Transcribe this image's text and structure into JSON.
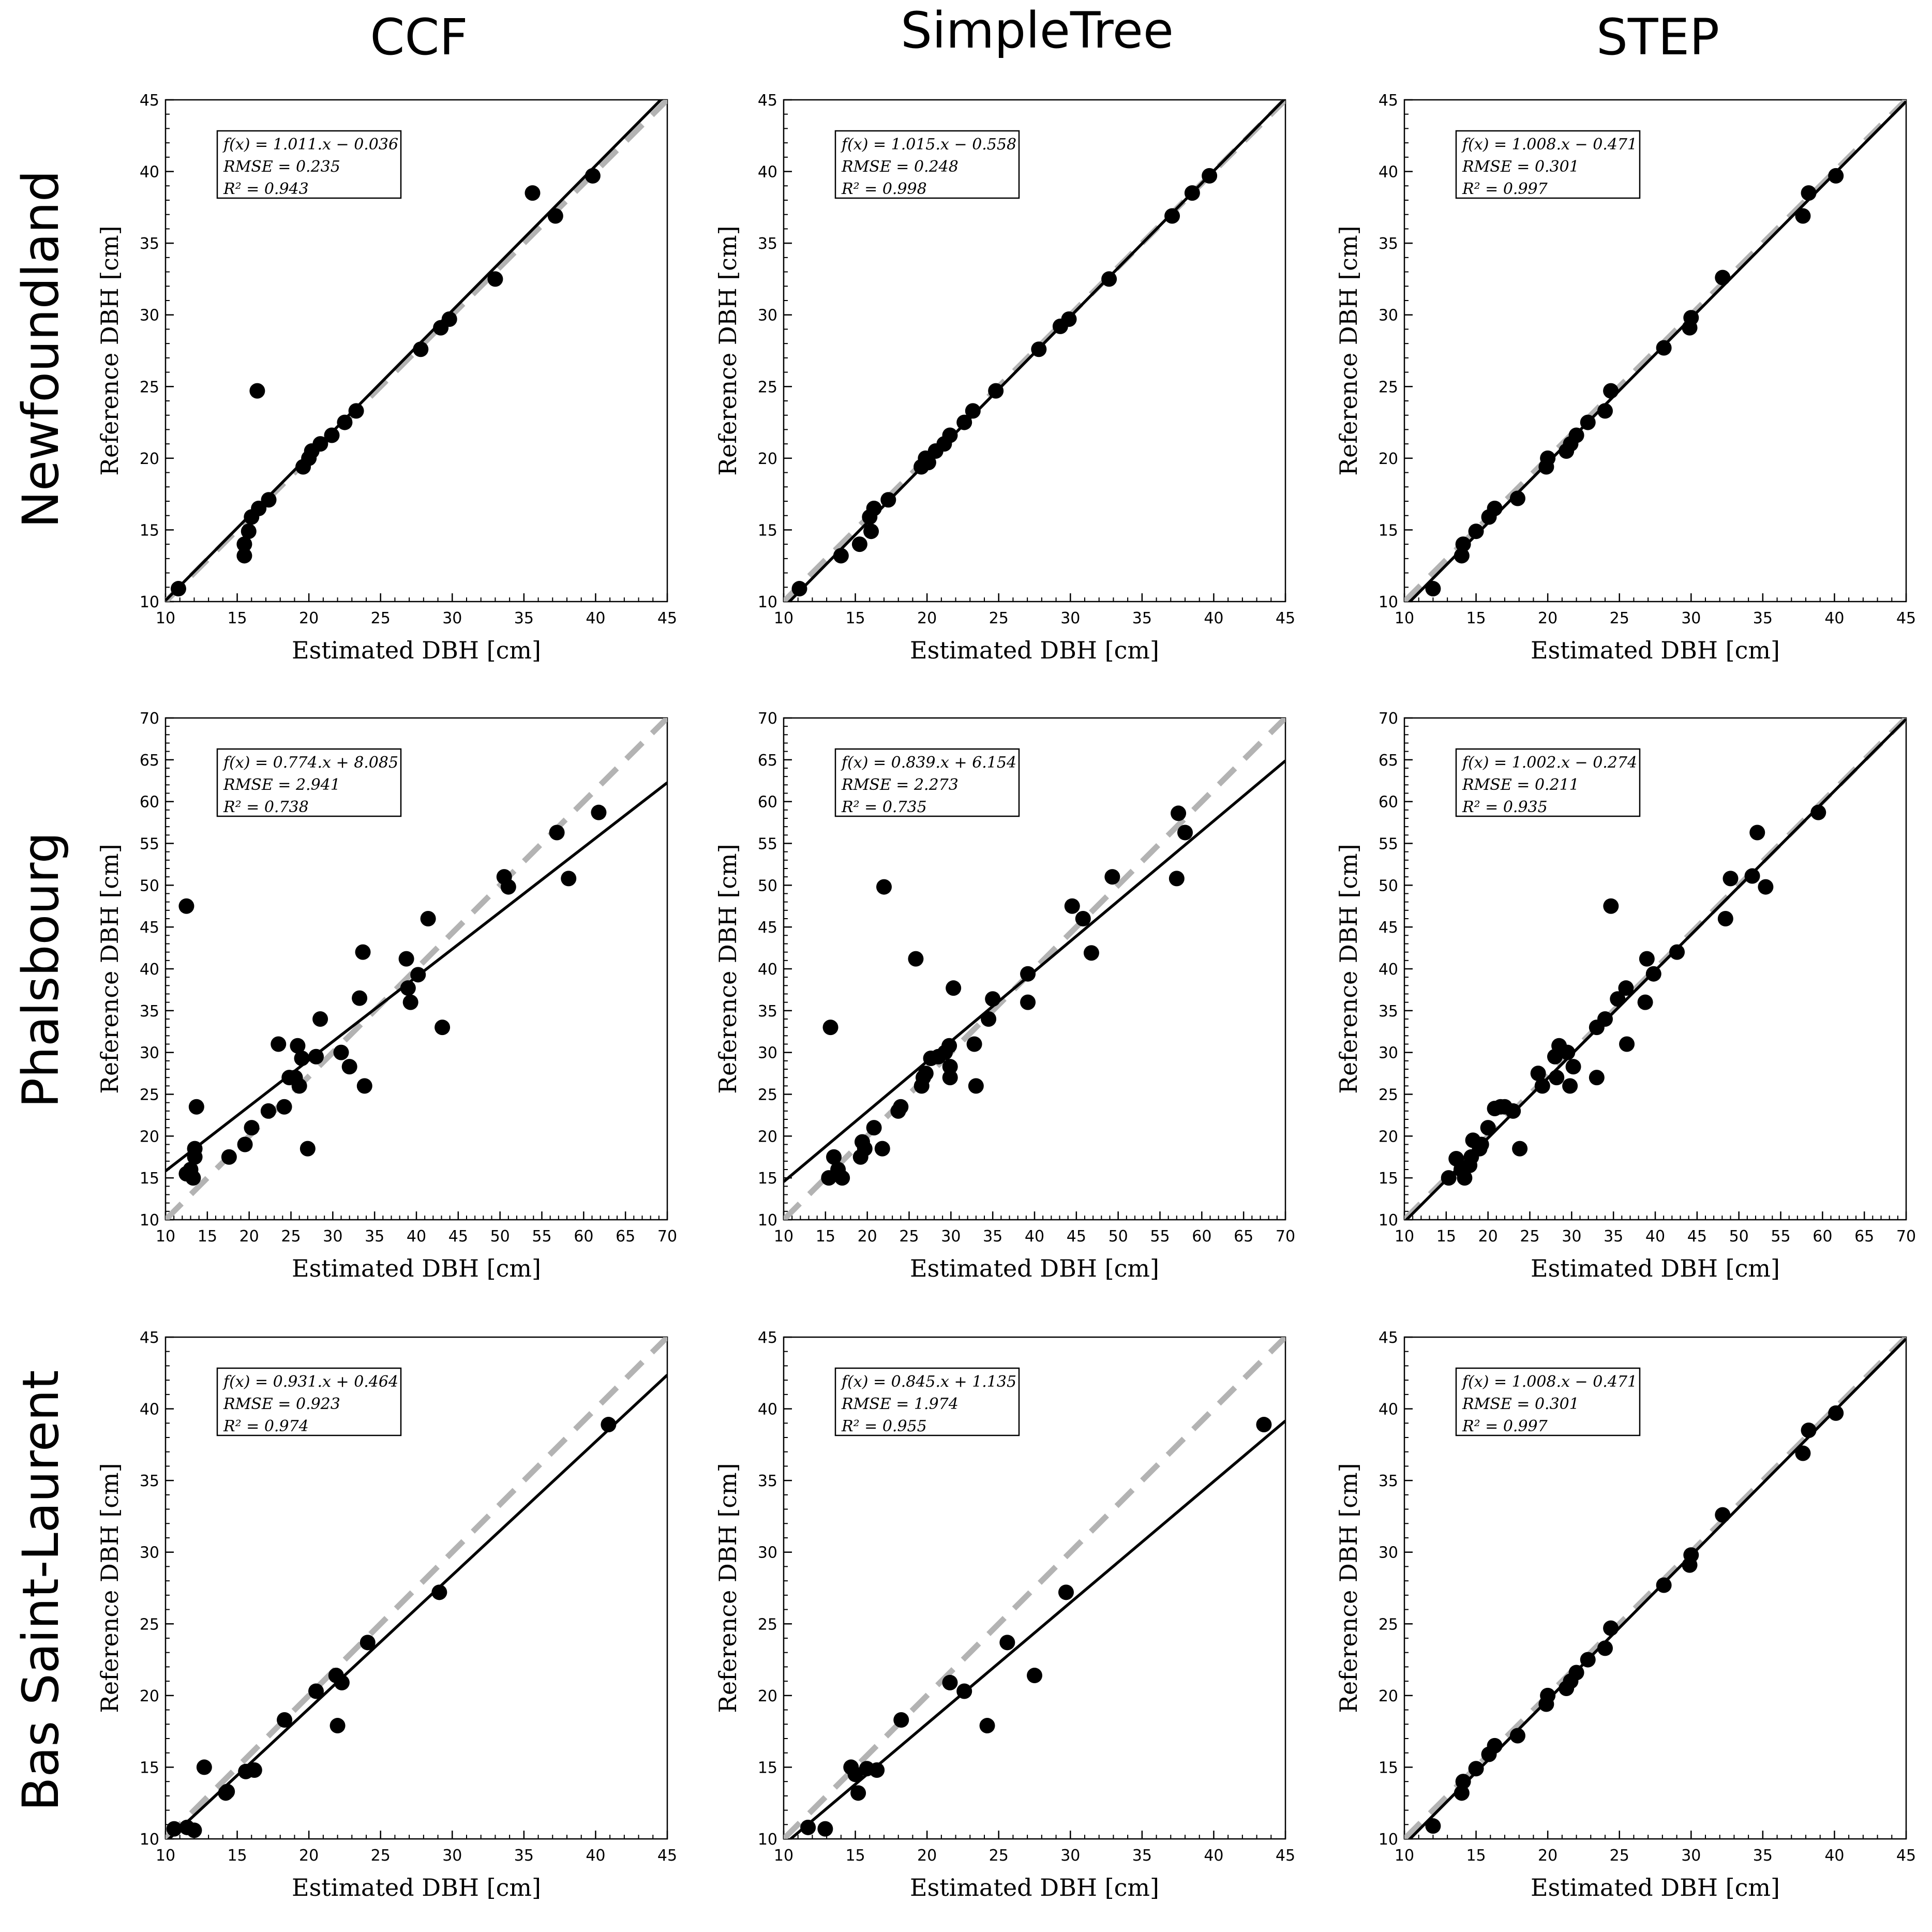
{
  "columns": [
    "CCF",
    "SimpleTree",
    "STEP"
  ],
  "rows": [
    "Newfoundland",
    "Phalsbourg",
    "Bas Saint-Laurent"
  ],
  "styles": {
    "point_color": "#000000",
    "fit_line_color": "#000000",
    "identity_line_color": "#b3b3b3"
  },
  "chart_data": [
    {
      "type": "scatter",
      "row": "Newfoundland",
      "column": "CCF",
      "xlabel": "Estimated DBH [cm]",
      "ylabel": "Reference DBH [cm]",
      "xlim": [
        10,
        45
      ],
      "ylim": [
        10,
        45
      ],
      "xticks": [
        10,
        15,
        20,
        25,
        30,
        35,
        40,
        45
      ],
      "yticks": [
        10,
        15,
        20,
        25,
        30,
        35,
        40,
        45
      ],
      "fit": {
        "slope": 1.011,
        "intercept": -0.036
      },
      "annotation": [
        "f(x) = 1.011.x − 0.036",
        "RMSE = 0.235",
        "R² = 0.943"
      ],
      "points": [
        [
          10.9,
          10.9
        ],
        [
          15.5,
          13.2
        ],
        [
          15.5,
          14.0
        ],
        [
          15.8,
          14.9
        ],
        [
          16.0,
          15.9
        ],
        [
          16.5,
          16.5
        ],
        [
          17.2,
          17.1
        ],
        [
          16.4,
          24.7
        ],
        [
          19.6,
          19.4
        ],
        [
          20.0,
          20.0
        ],
        [
          20.2,
          20.5
        ],
        [
          20.8,
          21.0
        ],
        [
          21.6,
          21.6
        ],
        [
          22.5,
          22.5
        ],
        [
          23.3,
          23.3
        ],
        [
          27.8,
          27.6
        ],
        [
          29.2,
          29.1
        ],
        [
          29.8,
          29.7
        ],
        [
          33.0,
          32.5
        ],
        [
          35.6,
          38.5
        ],
        [
          37.2,
          36.9
        ],
        [
          39.8,
          39.7
        ]
      ]
    },
    {
      "type": "scatter",
      "row": "Newfoundland",
      "column": "SimpleTree",
      "xlabel": "Estimated DBH [cm]",
      "ylabel": "Reference DBH [cm]",
      "xlim": [
        10,
        45
      ],
      "ylim": [
        10,
        45
      ],
      "xticks": [
        10,
        15,
        20,
        25,
        30,
        35,
        40,
        45
      ],
      "yticks": [
        10,
        15,
        20,
        25,
        30,
        35,
        40,
        45
      ],
      "fit": {
        "slope": 1.015,
        "intercept": -0.558
      },
      "annotation": [
        "f(x) = 1.015.x − 0.558",
        "RMSE = 0.248",
        "R² = 0.998"
      ],
      "points": [
        [
          11.1,
          10.9
        ],
        [
          14.0,
          13.2
        ],
        [
          15.3,
          14.0
        ],
        [
          16.1,
          14.9
        ],
        [
          16.0,
          15.9
        ],
        [
          16.3,
          16.5
        ],
        [
          17.3,
          17.1
        ],
        [
          19.6,
          19.4
        ],
        [
          19.9,
          20.0
        ],
        [
          20.1,
          19.7
        ],
        [
          20.6,
          20.5
        ],
        [
          21.2,
          21.0
        ],
        [
          21.6,
          21.6
        ],
        [
          22.6,
          22.5
        ],
        [
          23.2,
          23.3
        ],
        [
          24.8,
          24.7
        ],
        [
          27.8,
          27.6
        ],
        [
          29.3,
          29.2
        ],
        [
          29.9,
          29.7
        ],
        [
          32.7,
          32.5
        ],
        [
          37.1,
          36.9
        ],
        [
          38.5,
          38.5
        ],
        [
          39.7,
          39.7
        ]
      ]
    },
    {
      "type": "scatter",
      "row": "Newfoundland",
      "column": "STEP",
      "xlabel": "Estimated DBH [cm]",
      "ylabel": "Reference DBH [cm]",
      "xlim": [
        10,
        45
      ],
      "ylim": [
        10,
        45
      ],
      "xticks": [
        10,
        15,
        20,
        25,
        30,
        35,
        40,
        45
      ],
      "yticks": [
        10,
        15,
        20,
        25,
        30,
        35,
        40,
        45
      ],
      "fit": {
        "slope": 1.008,
        "intercept": -0.471
      },
      "annotation": [
        "f(x) = 1.008.x − 0.471",
        "RMSE = 0.301",
        "R² = 0.997"
      ],
      "points": [
        [
          12.0,
          10.9
        ],
        [
          14.0,
          13.2
        ],
        [
          14.1,
          14.0
        ],
        [
          15.0,
          14.9
        ],
        [
          15.9,
          15.9
        ],
        [
          16.3,
          16.5
        ],
        [
          17.9,
          17.2
        ],
        [
          19.9,
          19.4
        ],
        [
          20.0,
          20.0
        ],
        [
          21.3,
          20.5
        ],
        [
          21.6,
          21.0
        ],
        [
          22.0,
          21.6
        ],
        [
          22.8,
          22.5
        ],
        [
          24.0,
          23.3
        ],
        [
          24.4,
          24.7
        ],
        [
          28.1,
          27.7
        ],
        [
          29.9,
          29.1
        ],
        [
          30.0,
          29.8
        ],
        [
          32.2,
          32.6
        ],
        [
          37.8,
          36.9
        ],
        [
          38.2,
          38.5
        ],
        [
          40.1,
          39.7
        ]
      ]
    },
    {
      "type": "scatter",
      "row": "Phalsbourg",
      "column": "CCF",
      "xlabel": "Estimated DBH [cm]",
      "ylabel": "Reference DBH [cm]",
      "xlim": [
        10,
        70
      ],
      "ylim": [
        10,
        70
      ],
      "xticks": [
        10,
        15,
        20,
        25,
        30,
        35,
        40,
        45,
        50,
        55,
        60,
        65,
        70
      ],
      "yticks": [
        10,
        15,
        20,
        25,
        30,
        35,
        40,
        45,
        50,
        55,
        60,
        65,
        70
      ],
      "fit": {
        "slope": 0.774,
        "intercept": 8.085
      },
      "annotation": [
        "f(x) = 0.774.x + 8.085",
        "RMSE = 2.941",
        "R² = 0.738"
      ],
      "points": [
        [
          12.5,
          47.5
        ],
        [
          12.5,
          15.5
        ],
        [
          13.0,
          16.0
        ],
        [
          13.3,
          15.0
        ],
        [
          13.5,
          17.5
        ],
        [
          13.5,
          18.5
        ],
        [
          13.7,
          23.5
        ],
        [
          17.6,
          17.5
        ],
        [
          19.5,
          19.0
        ],
        [
          20.3,
          21.0
        ],
        [
          22.3,
          23.0
        ],
        [
          23.5,
          31.0
        ],
        [
          24.2,
          23.5
        ],
        [
          24.8,
          27.0
        ],
        [
          25.5,
          27.0
        ],
        [
          25.8,
          30.8
        ],
        [
          26.0,
          26.0
        ],
        [
          26.3,
          29.3
        ],
        [
          27.0,
          18.5
        ],
        [
          28.0,
          29.5
        ],
        [
          28.5,
          34.0
        ],
        [
          31.0,
          30.0
        ],
        [
          32.0,
          28.3
        ],
        [
          33.2,
          36.5
        ],
        [
          33.6,
          42.0
        ],
        [
          33.8,
          26.0
        ],
        [
          38.8,
          41.2
        ],
        [
          39.0,
          37.7
        ],
        [
          39.3,
          36.0
        ],
        [
          40.2,
          39.3
        ],
        [
          41.4,
          46.0
        ],
        [
          43.1,
          33.0
        ],
        [
          50.5,
          51.0
        ],
        [
          51.0,
          49.8
        ],
        [
          56.8,
          56.3
        ],
        [
          58.2,
          50.8
        ],
        [
          61.8,
          58.7
        ]
      ]
    },
    {
      "type": "scatter",
      "row": "Phalsbourg",
      "column": "SimpleTree",
      "xlabel": "Estimated DBH [cm]",
      "ylabel": "Reference DBH [cm]",
      "xlim": [
        10,
        70
      ],
      "ylim": [
        10,
        70
      ],
      "xticks": [
        10,
        15,
        20,
        25,
        30,
        35,
        40,
        45,
        50,
        55,
        60,
        65,
        70
      ],
      "yticks": [
        10,
        15,
        20,
        25,
        30,
        35,
        40,
        45,
        50,
        55,
        60,
        65,
        70
      ],
      "fit": {
        "slope": 0.839,
        "intercept": 6.154
      },
      "annotation": [
        "f(x) = 0.839.x + 6.154",
        "RMSE = 2.273",
        "R² = 0.735"
      ],
      "points": [
        [
          15.6,
          33.0
        ],
        [
          15.4,
          15.0
        ],
        [
          16.0,
          17.5
        ],
        [
          16.5,
          16.0
        ],
        [
          17.0,
          15.0
        ],
        [
          19.2,
          17.5
        ],
        [
          19.4,
          19.3
        ],
        [
          19.7,
          18.5
        ],
        [
          20.8,
          21.0
        ],
        [
          21.8,
          18.5
        ],
        [
          22.0,
          49.8
        ],
        [
          23.7,
          23.0
        ],
        [
          24.0,
          23.5
        ],
        [
          25.8,
          41.2
        ],
        [
          26.5,
          26.0
        ],
        [
          26.7,
          27.0
        ],
        [
          27.0,
          27.5
        ],
        [
          27.6,
          29.3
        ],
        [
          28.5,
          29.5
        ],
        [
          29.3,
          30.0
        ],
        [
          29.8,
          30.8
        ],
        [
          29.9,
          27.0
        ],
        [
          29.9,
          28.3
        ],
        [
          30.3,
          37.7
        ],
        [
          32.8,
          31.0
        ],
        [
          33.0,
          26.0
        ],
        [
          34.5,
          34.0
        ],
        [
          35.0,
          36.4
        ],
        [
          39.2,
          39.4
        ],
        [
          39.2,
          36.0
        ],
        [
          44.5,
          47.5
        ],
        [
          45.8,
          46.0
        ],
        [
          46.8,
          41.9
        ],
        [
          49.3,
          51.0
        ],
        [
          57.0,
          50.8
        ],
        [
          57.2,
          58.6
        ],
        [
          58.0,
          56.3
        ]
      ]
    },
    {
      "type": "scatter",
      "row": "Phalsbourg",
      "column": "STEP",
      "xlabel": "Estimated DBH [cm]",
      "ylabel": "Reference DBH [cm]",
      "xlim": [
        10,
        70
      ],
      "ylim": [
        10,
        70
      ],
      "xticks": [
        10,
        15,
        20,
        25,
        30,
        35,
        40,
        45,
        50,
        55,
        60,
        65,
        70
      ],
      "yticks": [
        10,
        15,
        20,
        25,
        30,
        35,
        40,
        45,
        50,
        55,
        60,
        65,
        70
      ],
      "fit": {
        "slope": 1.002,
        "intercept": -0.274
      },
      "annotation": [
        "f(x) = 1.002.x − 0.274",
        "RMSE = 0.211",
        "R² = 0.935"
      ],
      "points": [
        [
          15.3,
          15.0
        ],
        [
          16.2,
          17.3
        ],
        [
          16.8,
          16.0
        ],
        [
          17.2,
          15.0
        ],
        [
          17.8,
          16.5
        ],
        [
          18.0,
          17.5
        ],
        [
          18.2,
          19.5
        ],
        [
          19.0,
          18.5
        ],
        [
          19.2,
          19.0
        ],
        [
          20.0,
          21.0
        ],
        [
          20.8,
          23.3
        ],
        [
          21.5,
          23.5
        ],
        [
          22.0,
          23.5
        ],
        [
          23.0,
          23.0
        ],
        [
          23.8,
          18.5
        ],
        [
          26.0,
          27.5
        ],
        [
          26.5,
          26.0
        ],
        [
          28.0,
          29.5
        ],
        [
          28.2,
          27.0
        ],
        [
          28.5,
          30.8
        ],
        [
          29.5,
          30.0
        ],
        [
          29.8,
          26.0
        ],
        [
          30.2,
          28.3
        ],
        [
          33.0,
          33.0
        ],
        [
          33.0,
          27.0
        ],
        [
          34.0,
          34.0
        ],
        [
          34.7,
          47.5
        ],
        [
          35.5,
          36.4
        ],
        [
          36.5,
          37.7
        ],
        [
          36.6,
          31.0
        ],
        [
          38.8,
          36.0
        ],
        [
          39.0,
          41.2
        ],
        [
          39.8,
          39.4
        ],
        [
          42.6,
          42.0
        ],
        [
          48.4,
          46.0
        ],
        [
          49.0,
          50.8
        ],
        [
          51.6,
          51.1
        ],
        [
          52.2,
          56.3
        ],
        [
          53.2,
          49.8
        ],
        [
          59.5,
          58.7
        ]
      ]
    },
    {
      "type": "scatter",
      "row": "Bas Saint-Laurent",
      "column": "CCF",
      "xlabel": "Estimated DBH [cm]",
      "ylabel": "Reference DBH [cm]",
      "xlim": [
        10,
        45
      ],
      "ylim": [
        10,
        45
      ],
      "xticks": [
        10,
        15,
        20,
        25,
        30,
        35,
        40,
        45
      ],
      "yticks": [
        10,
        15,
        20,
        25,
        30,
        35,
        40,
        45
      ],
      "fit": {
        "slope": 0.931,
        "intercept": 0.464
      },
      "annotation": [
        "f(x) = 0.931.x + 0.464",
        "RMSE = 0.923",
        "R² = 0.974"
      ],
      "points": [
        [
          10.6,
          10.7
        ],
        [
          11.5,
          10.8
        ],
        [
          12.0,
          10.6
        ],
        [
          12.7,
          15.0
        ],
        [
          14.2,
          13.2
        ],
        [
          14.3,
          13.3
        ],
        [
          15.6,
          14.7
        ],
        [
          16.2,
          14.8
        ],
        [
          18.3,
          18.3
        ],
        [
          20.5,
          20.3
        ],
        [
          21.9,
          21.4
        ],
        [
          22.0,
          17.9
        ],
        [
          22.3,
          20.9
        ],
        [
          24.1,
          23.7
        ],
        [
          29.1,
          27.2
        ],
        [
          40.9,
          38.9
        ]
      ]
    },
    {
      "type": "scatter",
      "row": "Bas Saint-Laurent",
      "column": "SimpleTree",
      "xlabel": "Estimated DBH [cm]",
      "ylabel": "Reference DBH [cm]",
      "xlim": [
        10,
        45
      ],
      "ylim": [
        10,
        45
      ],
      "xticks": [
        10,
        15,
        20,
        25,
        30,
        35,
        40,
        45
      ],
      "yticks": [
        10,
        15,
        20,
        25,
        30,
        35,
        40,
        45
      ],
      "fit": {
        "slope": 0.845,
        "intercept": 1.135
      },
      "annotation": [
        "f(x) = 0.845.x + 1.135",
        "RMSE = 1.974",
        "R² = 0.955"
      ],
      "points": [
        [
          11.7,
          10.8
        ],
        [
          12.9,
          10.7
        ],
        [
          14.7,
          15.0
        ],
        [
          15.0,
          14.5
        ],
        [
          15.2,
          13.2
        ],
        [
          15.8,
          14.9
        ],
        [
          16.5,
          14.8
        ],
        [
          18.2,
          18.3
        ],
        [
          21.6,
          20.9
        ],
        [
          22.6,
          20.3
        ],
        [
          24.2,
          17.9
        ],
        [
          25.6,
          23.7
        ],
        [
          27.5,
          21.4
        ],
        [
          29.7,
          27.2
        ],
        [
          43.5,
          38.9
        ]
      ]
    },
    {
      "type": "scatter",
      "row": "Bas Saint-Laurent",
      "column": "STEP",
      "xlabel": "Estimated DBH [cm]",
      "ylabel": "Reference DBH [cm]",
      "xlim": [
        10,
        45
      ],
      "ylim": [
        10,
        45
      ],
      "xticks": [
        10,
        15,
        20,
        25,
        30,
        35,
        40,
        45
      ],
      "yticks": [
        10,
        15,
        20,
        25,
        30,
        35,
        40,
        45
      ],
      "fit": {
        "slope": 1.008,
        "intercept": -0.471
      },
      "annotation": [
        "f(x) = 1.008.x − 0.471",
        "RMSE = 0.301",
        "R² = 0.997"
      ],
      "points": [
        [
          12.0,
          10.9
        ],
        [
          14.0,
          13.2
        ],
        [
          14.1,
          14.0
        ],
        [
          15.0,
          14.9
        ],
        [
          15.9,
          15.9
        ],
        [
          16.3,
          16.5
        ],
        [
          17.9,
          17.2
        ],
        [
          19.9,
          19.4
        ],
        [
          20.0,
          20.0
        ],
        [
          21.3,
          20.5
        ],
        [
          21.6,
          21.0
        ],
        [
          22.0,
          21.6
        ],
        [
          22.8,
          22.5
        ],
        [
          24.0,
          23.3
        ],
        [
          24.4,
          24.7
        ],
        [
          28.1,
          27.7
        ],
        [
          29.9,
          29.1
        ],
        [
          30.0,
          29.8
        ],
        [
          32.2,
          32.6
        ],
        [
          37.8,
          36.9
        ],
        [
          38.2,
          38.5
        ],
        [
          40.1,
          39.7
        ]
      ]
    }
  ]
}
